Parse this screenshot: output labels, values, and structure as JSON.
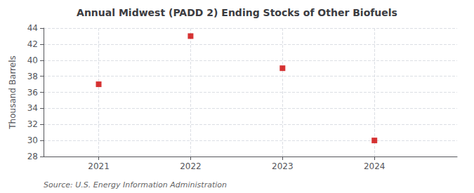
{
  "chart_data": {
    "type": "scatter",
    "title": "Annual Midwest (PADD 2) Ending Stocks of Other Biofuels",
    "ylabel": "Thousand Barrels",
    "source": "Source: U.S. Energy Information Administration",
    "x": [
      2021,
      2022,
      2023,
      2024
    ],
    "values": [
      37.0,
      43.0,
      39.0,
      30.0
    ],
    "xlim": [
      2020.4,
      2024.9
    ],
    "xticks": [
      2021,
      2022,
      2023,
      2024
    ],
    "ylim": [
      28,
      44
    ],
    "yticks": [
      28,
      30,
      32,
      34,
      36,
      38,
      40,
      42,
      44
    ],
    "color": "#cc0000",
    "marker": "square",
    "grid": true
  }
}
